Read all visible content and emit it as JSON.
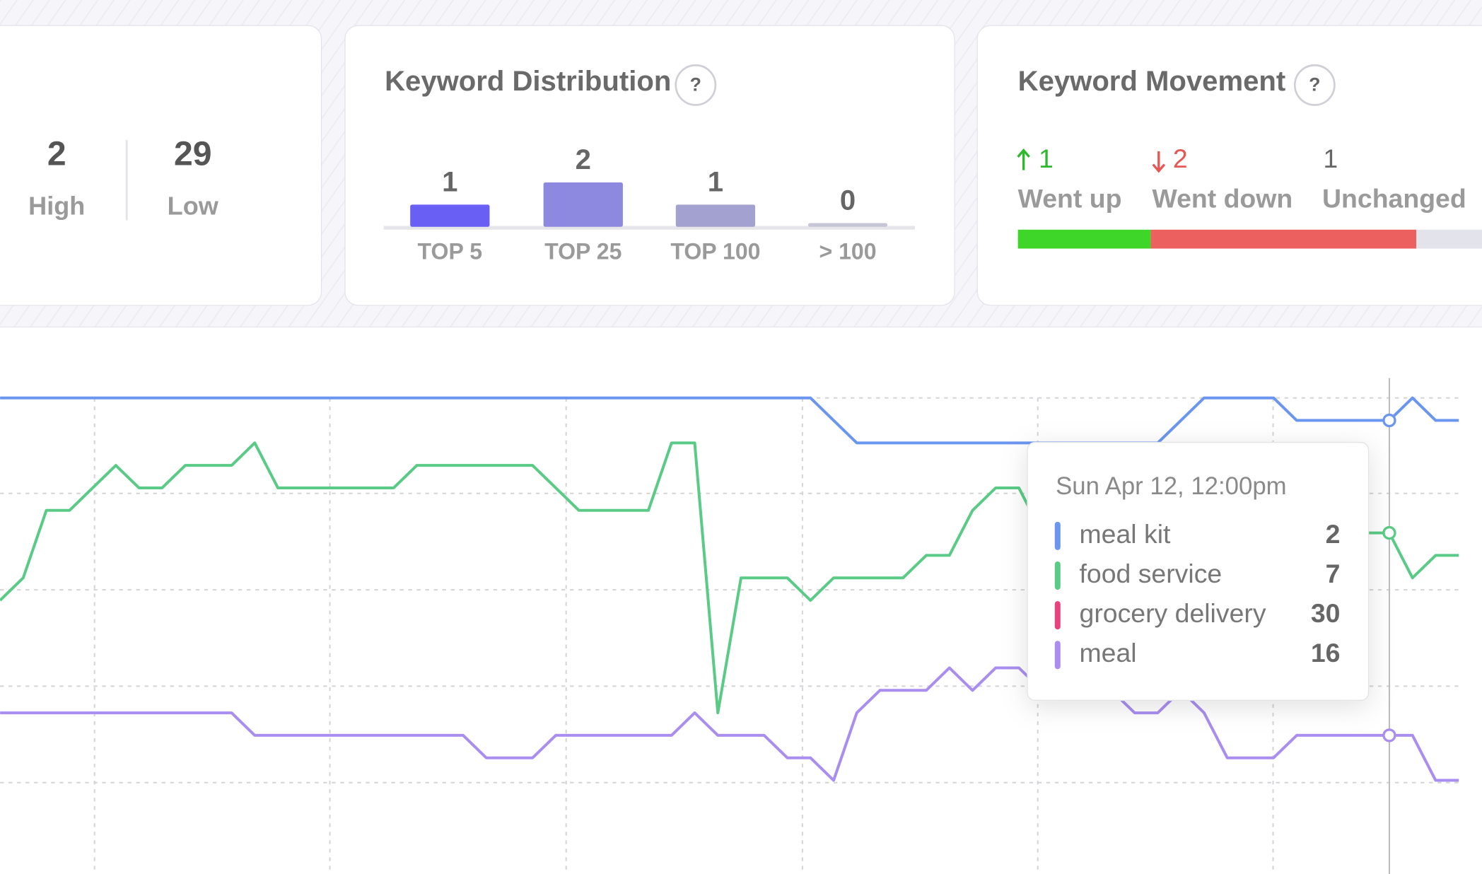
{
  "priority_card": {
    "items": [
      {
        "value": 2,
        "label": "High"
      },
      {
        "value": 29,
        "label": "Low"
      }
    ]
  },
  "keyword_distribution": {
    "title": "Keyword Distribution",
    "help": "?",
    "type": "bar",
    "categories": [
      "TOP 5",
      "TOP 25",
      "TOP 100",
      "> 100"
    ],
    "values": [
      1,
      2,
      1,
      0
    ],
    "colors": [
      "#6a5ff5",
      "#8d88e0",
      "#a3a1cf",
      "#c6c6d6"
    ]
  },
  "keyword_movement": {
    "title": "Keyword Movement",
    "help": "?",
    "items": [
      {
        "label": "Went up",
        "value": 1,
        "color": "#3fd62a",
        "text_color": "#2eb82e"
      },
      {
        "label": "Went down",
        "value": 2,
        "color": "#ec6060",
        "text_color": "#e85555"
      },
      {
        "label": "Unchanged",
        "value": 1,
        "color": "#e3e3eb",
        "text_color": "#666666"
      }
    ]
  },
  "chart_data": {
    "type": "line",
    "inverted": true,
    "x": [
      0,
      1,
      2,
      3,
      4,
      5,
      6,
      7,
      8,
      9,
      10,
      11,
      12,
      13,
      14,
      15,
      16,
      17,
      18,
      19,
      20,
      21,
      22,
      23,
      24,
      25,
      26,
      27,
      28,
      29,
      30,
      31,
      32,
      33,
      34,
      35,
      36,
      37,
      38,
      39,
      40,
      41,
      42,
      43,
      44,
      45,
      46,
      47,
      48,
      49,
      50,
      51,
      52,
      53,
      54,
      55,
      56,
      57,
      58,
      59,
      60,
      61,
      62,
      63
    ],
    "xlim": [
      0,
      63
    ],
    "ylim": [
      1,
      22
    ],
    "series": [
      {
        "name": "meal kit",
        "color": "#6b96f0",
        "values": [
          1,
          1,
          1,
          1,
          1,
          1,
          1,
          1,
          1,
          1,
          1,
          1,
          1,
          1,
          1,
          1,
          1,
          1,
          1,
          1,
          1,
          1,
          1,
          1,
          1,
          1,
          1,
          1,
          1,
          1,
          1,
          1,
          1,
          1,
          1,
          1,
          2,
          3,
          3,
          3,
          3,
          3,
          3,
          3,
          3,
          3,
          3,
          3,
          3,
          3,
          3,
          2,
          1,
          1,
          1,
          1,
          2,
          2,
          2,
          2,
          2,
          1,
          2,
          2
        ]
      },
      {
        "name": "food service",
        "color": "#5acb86",
        "values": [
          10,
          9,
          6,
          6,
          5,
          4,
          5,
          5,
          4,
          4,
          4,
          3,
          5,
          5,
          5,
          5,
          5,
          5,
          4,
          4,
          4,
          4,
          4,
          4,
          5,
          6,
          6,
          6,
          6,
          3,
          3,
          15,
          9,
          9,
          9,
          10,
          9,
          9,
          9,
          9,
          8,
          8,
          6,
          5,
          5,
          7,
          7,
          7,
          7,
          7,
          7,
          7,
          7,
          7,
          7,
          7,
          7,
          7,
          7,
          7,
          7,
          9,
          8,
          8
        ]
      },
      {
        "name": "meal",
        "color": "#a98ef0",
        "values": [
          15,
          15,
          15,
          15,
          15,
          15,
          15,
          15,
          15,
          15,
          15,
          16,
          16,
          16,
          16,
          16,
          16,
          16,
          16,
          16,
          16,
          17,
          17,
          17,
          16,
          16,
          16,
          16,
          16,
          16,
          15,
          16,
          16,
          16,
          17,
          17,
          18,
          15,
          14,
          14,
          14,
          13,
          14,
          13,
          13,
          14,
          14,
          14,
          14,
          15,
          15,
          14,
          15,
          17,
          17,
          17,
          16,
          16,
          16,
          16,
          16,
          16,
          18,
          18
        ]
      }
    ]
  },
  "tooltip": {
    "title": "Sun Apr 12, 12:00pm",
    "rows": [
      {
        "name": "meal kit",
        "value": 2,
        "color": "#6b96f0"
      },
      {
        "name": "food service",
        "value": 7,
        "color": "#5acb86"
      },
      {
        "name": "grocery delivery",
        "value": 30,
        "color": "#e8437a"
      },
      {
        "name": "meal",
        "value": 16,
        "color": "#a98ef0"
      }
    ]
  }
}
